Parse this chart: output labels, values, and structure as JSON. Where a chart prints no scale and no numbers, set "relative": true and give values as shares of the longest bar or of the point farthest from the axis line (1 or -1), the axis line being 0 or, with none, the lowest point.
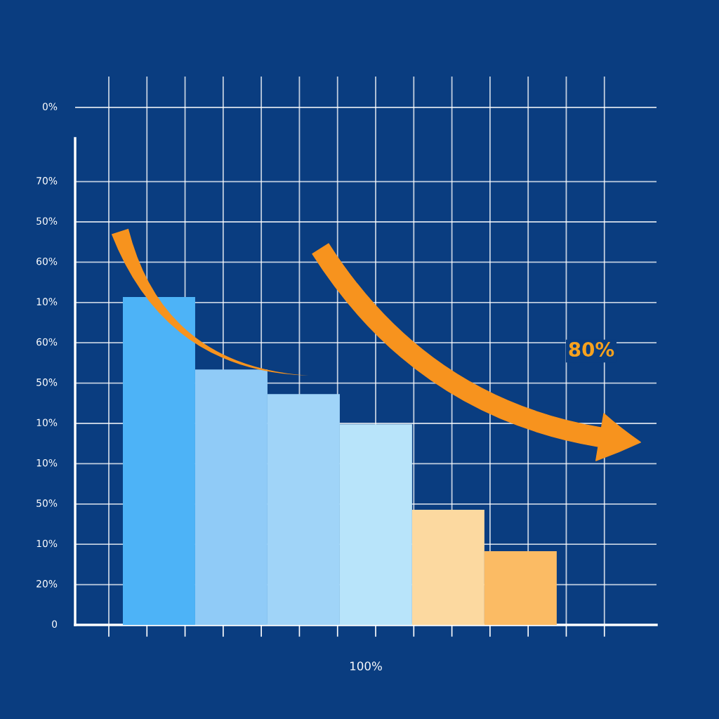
{
  "chart_data": {
    "type": "bar",
    "xlabel": "100%",
    "relative": true,
    "categories": [
      null,
      null,
      null,
      null,
      null,
      null
    ],
    "values": [
      1,
      0.779,
      0.704,
      0.612,
      0.351,
      0.225
    ],
    "colors": [
      "#4db3f7",
      "#90cbf7",
      "#a0d4f8",
      "#b8e4fa",
      "#fcd9a0",
      "#fbbb64"
    ],
    "grid": true,
    "annotations": [
      "0%",
      "70%",
      "50%",
      "60%",
      "10%",
      "60%",
      "50%",
      "10%",
      "10%",
      "50%",
      "10%",
      "20%",
      "0",
      "80%"
    ]
  }
}
